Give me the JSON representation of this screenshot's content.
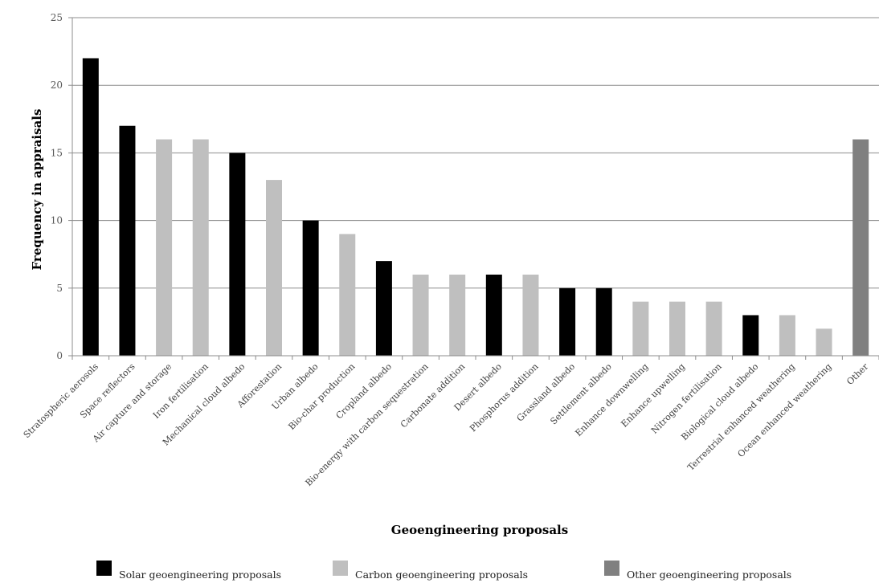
{
  "chart_data": {
    "type": "bar",
    "title": "",
    "xlabel": "Geoengineering proposals",
    "ylabel": "Frequency in appraisals",
    "ylim": [
      0,
      25
    ],
    "yticks": [
      0,
      5,
      10,
      15,
      20,
      25
    ],
    "grid": true,
    "legend_position": "bottom",
    "groups": [
      {
        "key": "solar",
        "name": "Solar geoengineering proposals",
        "color": "#000000"
      },
      {
        "key": "carbon",
        "name": "Carbon geoengineering proposals",
        "color": "#bfbfbf"
      },
      {
        "key": "other",
        "name": "Other geoengineering proposals",
        "color": "#808080"
      }
    ],
    "categories": [
      "Stratospheric aerosols",
      "Space reflectors",
      "Air capture and storage",
      "Iron fertilisation",
      "Mechanical cloud albedo",
      "Afforestation",
      "Urban albedo",
      "Bio-char production",
      "Cropland albedo",
      "Bio-energy with carbon sequestration",
      "Carbonate addition",
      "Desert albedo",
      "Phosphorus addition",
      "Grassland albedo",
      "Settlement albedo",
      "Enhance downwelling",
      "Enhance upwelling",
      "Nitrogen fertilisation",
      "Biological cloud albedo",
      "Terrestrial enhanced weathering",
      "Ocean enhanced weathering",
      "Other"
    ],
    "values": [
      22,
      17,
      16,
      16,
      15,
      13,
      10,
      9,
      7,
      6,
      6,
      6,
      6,
      5,
      5,
      4,
      4,
      4,
      3,
      3,
      2,
      16
    ],
    "group_of": [
      "solar",
      "solar",
      "carbon",
      "carbon",
      "solar",
      "carbon",
      "solar",
      "carbon",
      "solar",
      "carbon",
      "carbon",
      "solar",
      "carbon",
      "solar",
      "solar",
      "carbon",
      "carbon",
      "carbon",
      "solar",
      "carbon",
      "carbon",
      "other"
    ]
  }
}
